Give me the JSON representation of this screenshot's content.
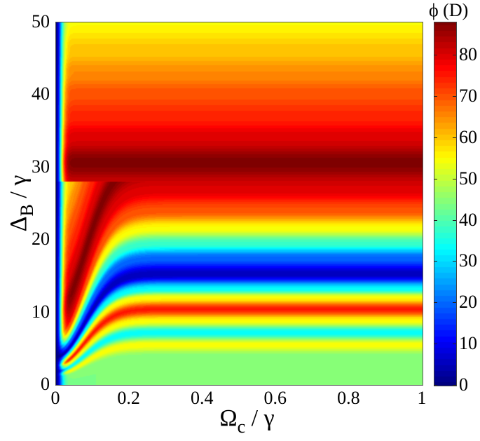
{
  "chart_data": {
    "type": "heatmap",
    "title": "",
    "xlabel": {
      "main": "Ω",
      "sub": "c",
      "rest": " / γ"
    },
    "ylabel": {
      "main": "Δ",
      "sub": "B",
      "rest": " / γ"
    },
    "xlim": [
      0,
      1
    ],
    "ylim": [
      0,
      50
    ],
    "xticks": [
      "0",
      "0.2",
      "0.4",
      "0.6",
      "0.8",
      "1"
    ],
    "xtick_values": [
      0,
      0.2,
      0.4,
      0.6,
      0.8,
      1
    ],
    "yticks": [
      "0",
      "10",
      "20",
      "30",
      "40",
      "50"
    ],
    "ytick_values": [
      0,
      10,
      20,
      30,
      40,
      50
    ],
    "colormap": "jet",
    "colorbar": {
      "title": "ϕ (D)",
      "range": [
        0,
        88
      ],
      "ticks": [
        "0",
        "10",
        "20",
        "30",
        "40",
        "50",
        "60",
        "70",
        "80"
      ],
      "tick_values": [
        0,
        10,
        20,
        30,
        40,
        50,
        60,
        70,
        80
      ]
    },
    "profile_at_large_x": {
      "description": "Approximate phi(D) vs Delta_B/gamma along Omega_c/gamma ~ 0.5-1 (bands are horizontal)",
      "delta": [
        0,
        2,
        4,
        5.5,
        7.2,
        8.8,
        10.4,
        12,
        13.2,
        15.2,
        17.5,
        19.5,
        21.6,
        24,
        27,
        30.6,
        34,
        37,
        40,
        43,
        46,
        50
      ],
      "phi": [
        44,
        44,
        45,
        55,
        33,
        55,
        75,
        55,
        33,
        5,
        20,
        38,
        55,
        70,
        80,
        88,
        80,
        74,
        70,
        65,
        60,
        55
      ]
    },
    "features": [
      "Near Omega_c/gamma = 0 a narrow vertical strip with phi ~ 0 (dark blue) for all Delta_B",
      "Bands bend downward toward the origin as Omega_c/gamma -> 0, forming curved fringes at low Omega_c (< 0.2)",
      "Dark red maximum (~88) centered at Delta_B/gamma ~ 30",
      "Blue minimum (~5) centered at Delta_B/gamma ~ 15",
      "Secondary red band (~75) at Delta_B/gamma ~ 10",
      "Green plateau (~44) for Delta_B/gamma < 4"
    ]
  }
}
